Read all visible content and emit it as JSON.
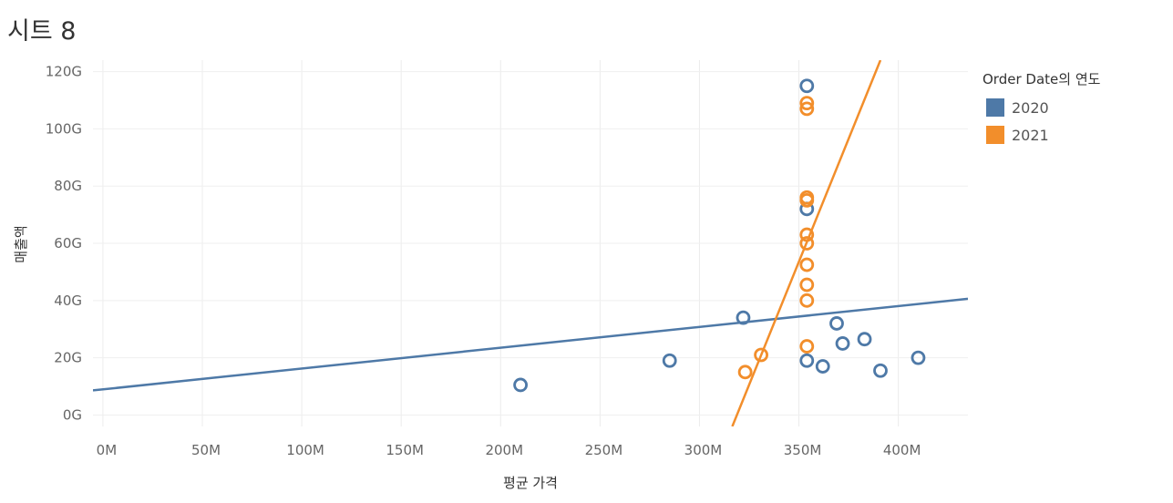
{
  "page": {
    "title": "시트 8"
  },
  "legend": {
    "title": "Order Date의 연도",
    "items": [
      {
        "label": "2020",
        "color": "#4e79a7"
      },
      {
        "label": "2021",
        "color": "#f28e2b"
      }
    ]
  },
  "chart_data": {
    "type": "scatter",
    "xlabel": "평균 가격",
    "ylabel": "매출액",
    "xlim": [
      -5,
      435
    ],
    "ylim": [
      -4,
      124
    ],
    "x_unit": "M",
    "y_unit": "G",
    "x_ticks": [
      "0M",
      "50M",
      "100M",
      "150M",
      "200M",
      "250M",
      "300M",
      "350M",
      "400M"
    ],
    "y_ticks": [
      "0G",
      "20G",
      "40G",
      "60G",
      "80G",
      "100G",
      "120G"
    ],
    "grid": true,
    "legend_position": "right",
    "series": [
      {
        "name": "2020",
        "color": "#4e79a7",
        "points": [
          [
            210,
            10.5
          ],
          [
            285,
            19
          ],
          [
            322,
            34
          ],
          [
            354,
            115
          ],
          [
            354,
            72
          ],
          [
            354,
            19
          ],
          [
            362,
            17
          ],
          [
            369,
            32
          ],
          [
            372,
            25
          ],
          [
            383,
            26.5
          ],
          [
            391,
            15.5
          ],
          [
            410,
            20
          ]
        ],
        "trend": [
          [
            -5,
            8.6
          ],
          [
            435,
            40.6
          ]
        ]
      },
      {
        "name": "2021",
        "color": "#f28e2b",
        "points": [
          [
            323,
            15
          ],
          [
            331,
            21
          ],
          [
            354,
            24
          ],
          [
            354,
            40
          ],
          [
            354,
            45.5
          ],
          [
            354,
            52.5
          ],
          [
            354,
            60
          ],
          [
            354,
            63
          ],
          [
            354,
            75
          ],
          [
            354,
            76
          ],
          [
            354,
            107
          ],
          [
            354,
            109
          ]
        ],
        "trend": [
          [
            316.5,
            -4
          ],
          [
            391,
            124
          ]
        ]
      }
    ]
  }
}
